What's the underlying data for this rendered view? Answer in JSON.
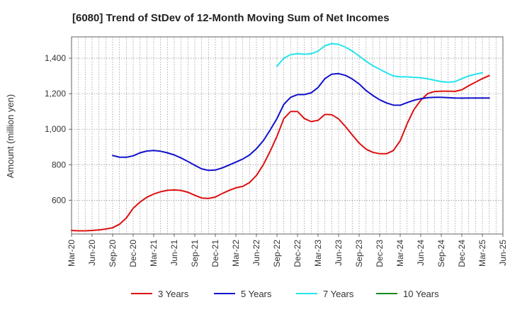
{
  "chart_data": {
    "type": "line",
    "title": "[6080]  Trend of StDev of 12-Month Moving Sum of Net Incomes",
    "xlabel": "",
    "ylabel": "Amount (million yen)",
    "ylim": [
      410,
      1520
    ],
    "yticks": [
      600,
      800,
      1000,
      1200,
      1400
    ],
    "ytick_labels": [
      "600",
      "800",
      "1,000",
      "1,200",
      "1,400"
    ],
    "grid": true,
    "legend_position": "bottom",
    "x_tick_labels": [
      "Mar-20",
      "Jun-20",
      "Sep-20",
      "Dec-20",
      "Mar-21",
      "Jun-21",
      "Sep-21",
      "Dec-21",
      "Mar-22",
      "Jun-22",
      "Sep-22",
      "Dec-22",
      "Mar-23",
      "Jun-23",
      "Sep-23",
      "Dec-23",
      "Mar-24",
      "Jun-24",
      "Sep-24",
      "Dec-24",
      "Mar-25",
      "Jun-25"
    ],
    "x_start": "Mar-20",
    "series": [
      {
        "name": "3 Years",
        "color": "#dd1111",
        "start_index": 0,
        "values": [
          430,
          428,
          428,
          430,
          433,
          438,
          445,
          465,
          500,
          555,
          590,
          617,
          635,
          648,
          656,
          658,
          655,
          645,
          628,
          613,
          610,
          618,
          638,
          655,
          670,
          678,
          700,
          740,
          800,
          875,
          960,
          1060,
          1100,
          1100,
          1060,
          1043,
          1050,
          1083,
          1082,
          1058,
          1015,
          968,
          922,
          888,
          870,
          862,
          862,
          880,
          935,
          1030,
          1110,
          1163,
          1200,
          1212,
          1214,
          1214,
          1213,
          1222,
          1245,
          1265,
          1285,
          1302
        ]
      },
      {
        "name": "5 Years",
        "color": "#1111cc",
        "start_index": 6,
        "values": [
          852,
          843,
          842,
          850,
          867,
          877,
          880,
          876,
          867,
          855,
          838,
          818,
          797,
          777,
          768,
          770,
          782,
          798,
          815,
          832,
          855,
          890,
          935,
          995,
          1060,
          1140,
          1180,
          1195,
          1195,
          1205,
          1235,
          1285,
          1310,
          1313,
          1303,
          1283,
          1255,
          1218,
          1190,
          1166,
          1148,
          1136,
          1135,
          1150,
          1163,
          1172,
          1178,
          1180,
          1180,
          1178,
          1176,
          1175,
          1176,
          1176,
          1176,
          1176
        ]
      },
      {
        "name": "7 Years",
        "color": "#22e5ee",
        "start_index": 30,
        "values": [
          1355,
          1400,
          1420,
          1425,
          1422,
          1425,
          1440,
          1470,
          1482,
          1478,
          1462,
          1440,
          1412,
          1383,
          1358,
          1337,
          1318,
          1300,
          1295,
          1295,
          1292,
          1290,
          1284,
          1276,
          1268,
          1265,
          1268,
          1285,
          1300,
          1310,
          1318
        ]
      },
      {
        "name": "10 Years",
        "color": "#1a8a1a",
        "start_index": 0,
        "values": []
      }
    ]
  }
}
